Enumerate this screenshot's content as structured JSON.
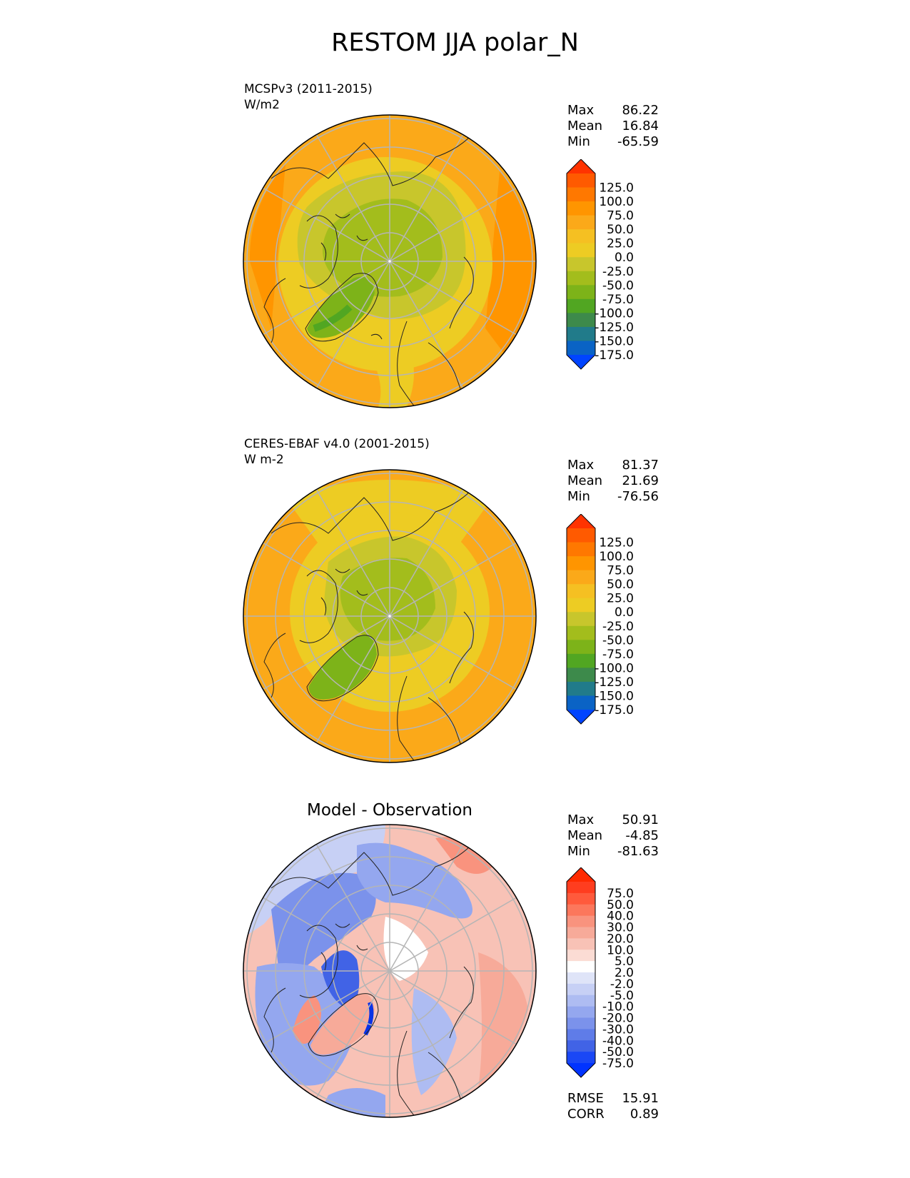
{
  "title": "RESTOM JJA polar_N",
  "panels": [
    {
      "id": "model",
      "title": "",
      "label": "MCSPv3 (2011-2015)",
      "units": "W/m2",
      "stats": [
        {
          "k": "Max",
          "v": "86.22"
        },
        {
          "k": "Mean",
          "v": "16.84"
        },
        {
          "k": "Min",
          "v": "-65.59"
        }
      ],
      "colorbar": {
        "ticks": [
          "125.0",
          "100.0",
          "75.0",
          "50.0",
          "25.0",
          "0.0",
          "-25.0",
          "-50.0",
          "-75.0",
          "-100.0",
          "-125.0",
          "-150.0",
          "-175.0"
        ],
        "colors": [
          "#ff3300",
          "#ff5a00",
          "#ff7800",
          "#ff9500",
          "#fba919",
          "#f5c022",
          "#edcc23",
          "#c8c62c",
          "#a3bd1c",
          "#7db319",
          "#51a622",
          "#3d8a4b",
          "#217b8a",
          "#0a63c5",
          "#0044ff"
        ],
        "extend": "both"
      }
    },
    {
      "id": "obs",
      "title": "",
      "label": "CERES-EBAF v4.0 (2001-2015)",
      "units": "W m-2",
      "stats": [
        {
          "k": "Max",
          "v": "81.37"
        },
        {
          "k": "Mean",
          "v": "21.69"
        },
        {
          "k": "Min",
          "v": "-76.56"
        }
      ],
      "colorbar": {
        "ticks": [
          "125.0",
          "100.0",
          "75.0",
          "50.0",
          "25.0",
          "0.0",
          "-25.0",
          "-50.0",
          "-75.0",
          "-100.0",
          "-125.0",
          "-150.0",
          "-175.0"
        ],
        "colors": [
          "#ff3300",
          "#ff5a00",
          "#ff7800",
          "#ff9500",
          "#fba919",
          "#f5c022",
          "#edcc23",
          "#c8c62c",
          "#a3bd1c",
          "#7db319",
          "#51a622",
          "#3d8a4b",
          "#217b8a",
          "#0a63c5",
          "#0044ff"
        ],
        "extend": "both"
      }
    },
    {
      "id": "diff",
      "title": "Model - Observation",
      "label": "",
      "units": "",
      "stats": [
        {
          "k": "Max",
          "v": "50.91"
        },
        {
          "k": "Mean",
          "v": "-4.85"
        },
        {
          "k": "Min",
          "v": "-81.63"
        }
      ],
      "metrics": [
        {
          "k": "RMSE",
          "v": "15.91"
        },
        {
          "k": "CORR",
          "v": "0.89"
        }
      ],
      "colorbar": {
        "ticks": [
          "75.0",
          "50.0",
          "40.0",
          "30.0",
          "20.0",
          "10.0",
          "5.0",
          "2.0",
          "-2.0",
          "-5.0",
          "-10.0",
          "-20.0",
          "-30.0",
          "-40.0",
          "-50.0",
          "-75.0"
        ],
        "colors": [
          "#ff2a00",
          "#ff3d1f",
          "#ff5a3c",
          "#fc775c",
          "#f9937e",
          "#f7aa99",
          "#f8c2b6",
          "#fbdcd4",
          "#ffffff",
          "#dfe4f8",
          "#c7d0f5",
          "#aebcf2",
          "#94a7ef",
          "#7b92eb",
          "#5f7ce8",
          "#4163e6",
          "#1a47f5",
          "#0033ff"
        ],
        "extend": "both"
      }
    }
  ]
}
